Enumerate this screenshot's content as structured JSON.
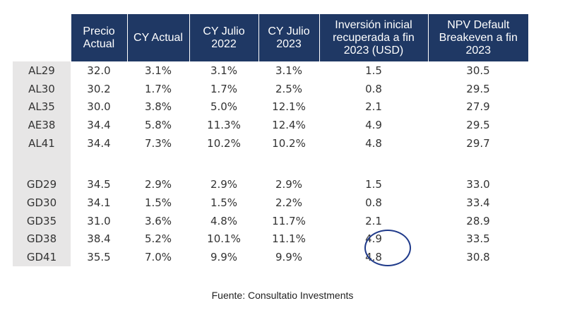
{
  "table": {
    "headers": [
      "Precio Actual",
      "CY Actual",
      "CY Julio 2022",
      "CY Julio 2023",
      "Inversión inicial recuperada a fin 2023 (USD)",
      "NPV Default Breakeven a fin 2023"
    ],
    "groups": [
      {
        "rows": [
          {
            "bond": "AL29",
            "values": [
              "32.0",
              "3.1%",
              "3.1%",
              "3.1%",
              "1.5",
              "30.5"
            ]
          },
          {
            "bond": "AL30",
            "values": [
              "30.2",
              "1.7%",
              "1.7%",
              "2.5%",
              "0.8",
              "29.5"
            ]
          },
          {
            "bond": "AL35",
            "values": [
              "30.0",
              "3.8%",
              "5.0%",
              "12.1%",
              "2.1",
              "27.9"
            ]
          },
          {
            "bond": "AE38",
            "values": [
              "34.4",
              "5.8%",
              "11.3%",
              "12.4%",
              "4.9",
              "29.5"
            ]
          },
          {
            "bond": "AL41",
            "values": [
              "34.4",
              "7.3%",
              "10.2%",
              "10.2%",
              "4.8",
              "29.7"
            ]
          }
        ]
      },
      {
        "rows": [
          {
            "bond": "GD29",
            "values": [
              "34.5",
              "2.9%",
              "2.9%",
              "2.9%",
              "1.5",
              "33.0"
            ]
          },
          {
            "bond": "GD30",
            "values": [
              "34.1",
              "1.5%",
              "1.5%",
              "2.2%",
              "0.8",
              "33.4"
            ]
          },
          {
            "bond": "GD35",
            "values": [
              "31.0",
              "3.6%",
              "4.8%",
              "11.7%",
              "2.1",
              "28.9"
            ]
          },
          {
            "bond": "GD38",
            "values": [
              "38.4",
              "5.2%",
              "10.1%",
              "11.1%",
              "4.9",
              "33.5"
            ]
          },
          {
            "bond": "GD41",
            "values": [
              "35.5",
              "7.0%",
              "9.9%",
              "9.9%",
              "4.8",
              "30.8"
            ]
          }
        ]
      }
    ]
  },
  "highlight_color": "#1f3a8a",
  "header_color": "#1f3864",
  "label_bg_color": "#e7e6e6",
  "source": "Fuente: Consultatio Investments"
}
